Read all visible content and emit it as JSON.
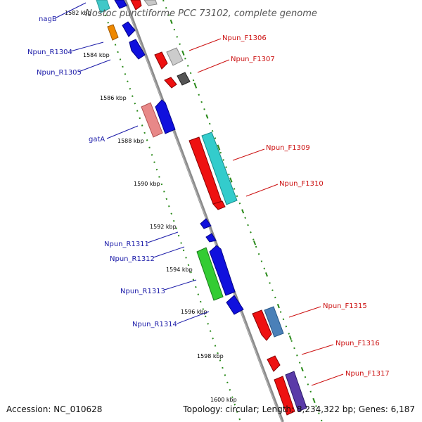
{
  "title": "Nostoc punctiforme PCC 73102, complete genome",
  "footer": {
    "accession": "Accession: NC_010628",
    "topology": "Topology: circular; Length: 8,234,322 bp; Genes: 6,187"
  },
  "kbp_ticks": [
    "1582 kbp",
    "1584 kbp",
    "1586 kbp",
    "1588 kbp",
    "1590 kbp",
    "1592 kbp",
    "1594 kbp",
    "1596 kbp",
    "1598 kbp",
    "1600 kbp"
  ],
  "left_labels": [
    "nagB",
    "Npun_R1304",
    "Npun_R1305",
    "gatA",
    "Npun_R1311",
    "Npun_R1312",
    "Npun_R1313",
    "Npun_R1314"
  ],
  "right_labels": [
    "Npun_F1306",
    "Npun_F1307",
    "Npun_F1309",
    "Npun_F1310",
    "Npun_F1315",
    "Npun_F1316",
    "Npun_F1317"
  ],
  "colors": {
    "backbone": "#8a8a8a",
    "dotted_guides": "#2a8a1a",
    "forward_label": "#cc1111",
    "reverse_label": "#1a1aa8"
  }
}
